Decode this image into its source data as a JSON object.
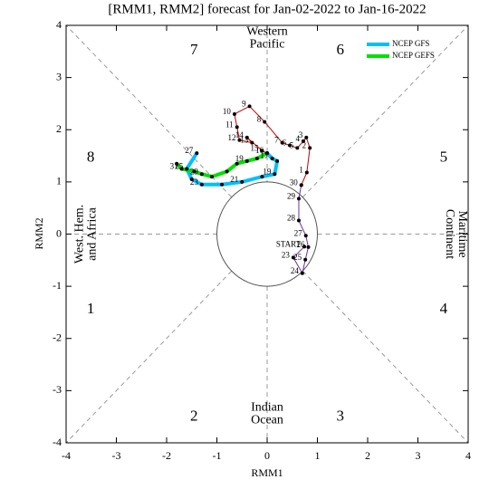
{
  "chart_data": {
    "type": "mjo-phase",
    "title": "[RMM1, RMM2] forecast for Jan-02-2022 to Jan-16-2022",
    "xlabel": "RMM1",
    "ylabel": "RMM2",
    "xlim": [
      -4,
      4
    ],
    "ylim": [
      -4,
      4
    ],
    "xticks": [
      -4,
      -3,
      -2,
      -1,
      0,
      1,
      2,
      3,
      4
    ],
    "yticks": [
      -4,
      -3,
      -2,
      -1,
      0,
      1,
      2,
      3,
      4
    ],
    "phases": [
      "1",
      "2",
      "3",
      "4",
      "5",
      "6",
      "7",
      "8"
    ],
    "regions": [
      [
        "Indian",
        "Ocean"
      ],
      [
        "Maritime",
        "Continent"
      ],
      [
        "Western",
        "Pacific"
      ],
      [
        "West. Hem.",
        "and Africa"
      ]
    ],
    "observed": [
      {
        "color": "#7030a0",
        "x": [
          0.74,
          0.52,
          0.7,
          0.76,
          0.82,
          0.77,
          0.63,
          0.63,
          0.68
        ],
        "y": [
          -0.24,
          -0.45,
          -0.75,
          -0.49,
          -0.25,
          -0.03,
          0.26,
          0.68,
          0.94
        ],
        "labels": [
          "START",
          "23",
          "24",
          "25",
          "26",
          "27",
          "28",
          "29",
          "30"
        ]
      },
      {
        "color": "#c00000",
        "x": [
          0.68,
          0.79,
          0.85,
          0.78,
          0.72,
          0.6,
          0.45,
          0.3,
          -0.05,
          -0.35,
          -0.65,
          -0.6,
          -0.55,
          -0.3,
          -0.4,
          -0.1,
          0.0
        ],
        "y": [
          0.94,
          1.18,
          1.65,
          1.85,
          1.78,
          1.65,
          1.7,
          1.75,
          2.15,
          2.45,
          2.3,
          2.05,
          1.8,
          1.75,
          1.85,
          1.6,
          1.55
        ],
        "labels": [
          null,
          "1",
          "2",
          "3",
          "4",
          "5",
          "6",
          "7",
          "8",
          "9",
          "10",
          "11",
          "12",
          "13",
          "14",
          "15",
          "16"
        ]
      }
    ],
    "forecast": [
      {
        "name": "NCEP GFS",
        "color": "#00bfff",
        "x": [
          0.0,
          0.1,
          0.2,
          0.15,
          -0.1,
          -0.5,
          -0.9,
          -1.3,
          -1.5,
          -1.6,
          -1.4
        ],
        "y": [
          1.55,
          1.45,
          1.4,
          1.15,
          1.1,
          1.0,
          0.95,
          0.95,
          1.05,
          1.25,
          1.55
        ],
        "labels": [
          null,
          "17",
          null,
          "19",
          null,
          "21",
          null,
          "23",
          null,
          "25",
          "27"
        ]
      },
      {
        "name": "NCEP GEFS",
        "color": "#00e000",
        "x": [
          0.0,
          -0.2,
          -0.4,
          -0.6,
          -0.8,
          -1.1,
          -1.3,
          -1.45,
          -1.7,
          -1.8
        ],
        "y": [
          1.55,
          1.45,
          1.4,
          1.35,
          1.2,
          1.1,
          1.15,
          1.2,
          1.25,
          1.35
        ],
        "labels": [
          null,
          null,
          "19",
          null,
          null,
          null,
          "29",
          null,
          "31",
          null
        ]
      }
    ]
  }
}
